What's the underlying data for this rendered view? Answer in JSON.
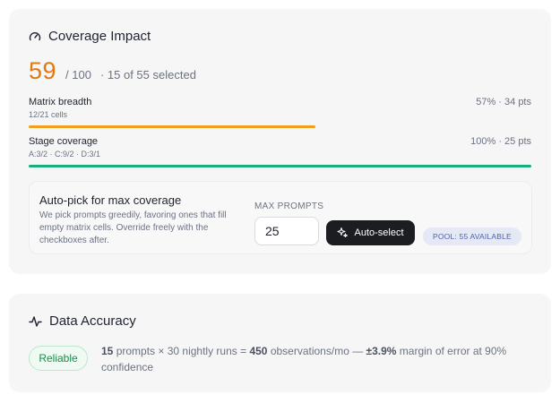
{
  "coverage": {
    "title": "Coverage Impact",
    "score": "59",
    "score_total": "/ 100",
    "selected_text": "· 15 of 55 selected",
    "score_color": "#e07a10",
    "metrics": [
      {
        "label": "Matrix breadth",
        "sub": "12/21 cells",
        "right": "57% · 34 pts",
        "fill": 0.57,
        "color": "#f0a020"
      },
      {
        "label": "Stage coverage",
        "sub": "A:3/2 · C:9/2 · D:3/1",
        "right": "100% · 25 pts",
        "fill": 1.0,
        "color": "#1aae7a"
      }
    ],
    "autopick": {
      "title": "Auto-pick for max coverage",
      "description": "We pick prompts greedily, favoring ones that fill empty matrix cells. Override freely with the checkboxes after.",
      "max_label": "MAX PROMPTS",
      "max_value": "25",
      "button_label": "Auto-select",
      "button_icon": "sparkle-icon",
      "pool_label": "POOL: 55 AVAILABLE"
    }
  },
  "accuracy": {
    "title": "Data Accuracy",
    "badge": "Reliable",
    "prompts": "15",
    "prompts_text": " prompts × 30 nightly runs = ",
    "observations": "450",
    "observations_text": " observations/mo  — ",
    "margin": "±3.9%",
    "margin_text": " margin of error at 90% confidence"
  }
}
